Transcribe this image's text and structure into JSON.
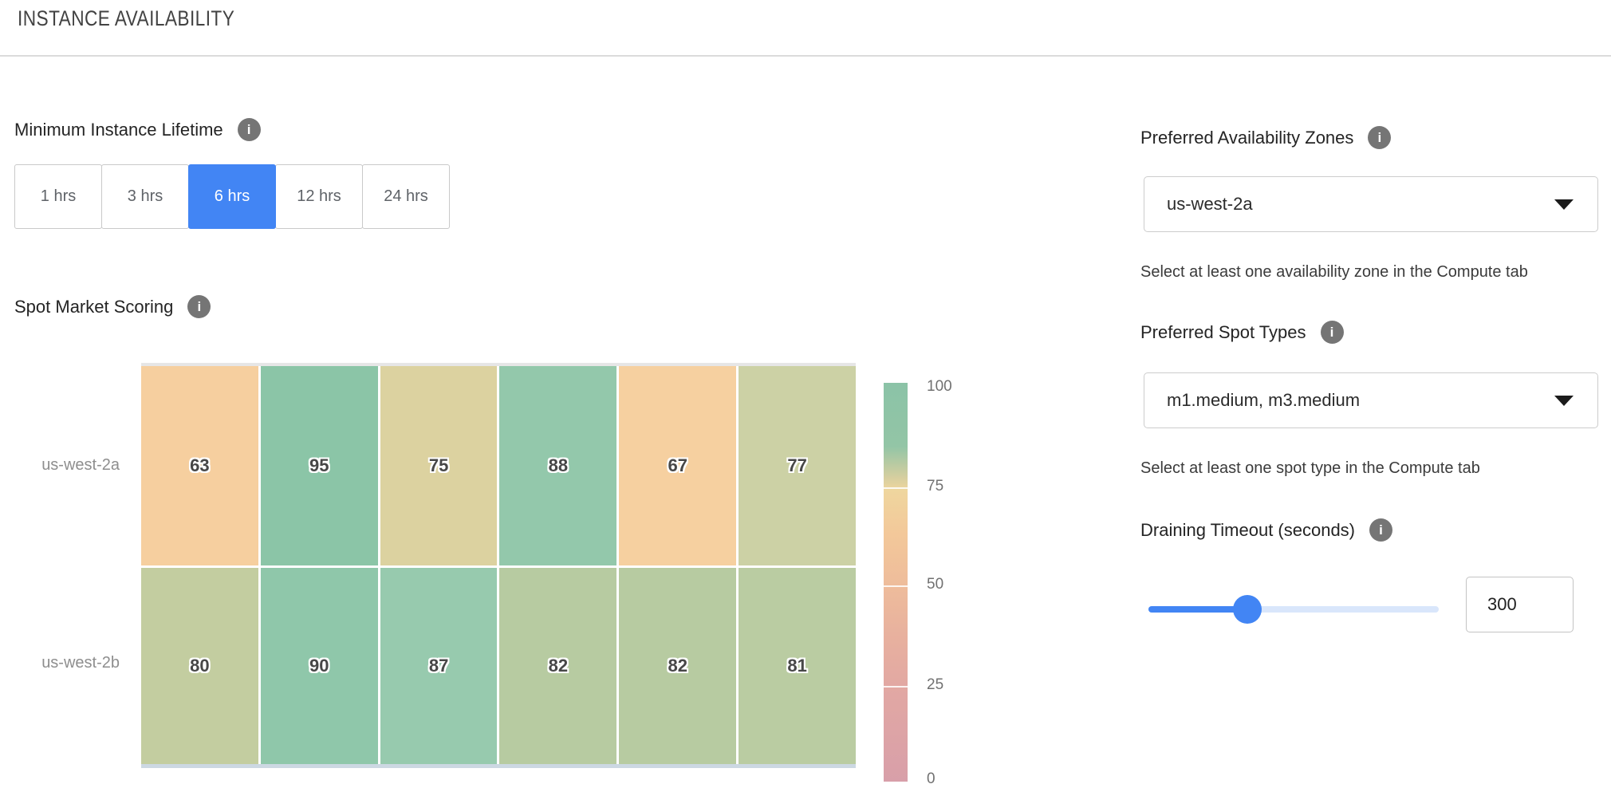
{
  "header": {
    "title": "INSTANCE AVAILABILITY"
  },
  "minimum_instance_lifetime": {
    "label": "Minimum Instance Lifetime",
    "options": [
      {
        "label": "1 hrs"
      },
      {
        "label": "3 hrs"
      },
      {
        "label": "6 hrs"
      },
      {
        "label": "12 hrs"
      },
      {
        "label": "24 hrs"
      }
    ],
    "selected_index": 2,
    "selected_value": "6 hrs"
  },
  "spot_market_scoring": {
    "label": "Spot Market Scoring"
  },
  "chart_data": {
    "type": "heatmap",
    "title": "Spot Market Scoring",
    "rows": [
      "us-west-2a",
      "us-west-2b"
    ],
    "columns_count": 6,
    "series": [
      {
        "name": "us-west-2a",
        "values": [
          63,
          95,
          75,
          88,
          67,
          77
        ],
        "colors": [
          "#f6cf9f",
          "#8bc5a7",
          "#dcd2a0",
          "#93c8ab",
          "#f6d0a0",
          "#ccd1a5"
        ]
      },
      {
        "name": "us-west-2b",
        "values": [
          80,
          90,
          87,
          82,
          82,
          81
        ],
        "colors": [
          "#c3cda0",
          "#8fc7aa",
          "#97caae",
          "#b7cba1",
          "#b7cba1",
          "#bacca2"
        ]
      }
    ],
    "colorbar": {
      "ticks": [
        "100",
        "75",
        "50",
        "25",
        "0"
      ],
      "range": [
        0,
        100
      ],
      "gradient_stops": [
        {
          "pct": 0,
          "color": "#8bc3a7"
        },
        {
          "pct": 16,
          "color": "#93c5a6"
        },
        {
          "pct": 24,
          "color": "#d8cf9f"
        },
        {
          "pct": 27,
          "color": "#efd69e"
        },
        {
          "pct": 38,
          "color": "#f3c89a"
        },
        {
          "pct": 51,
          "color": "#eebc9b"
        },
        {
          "pct": 63,
          "color": "#e8b19e"
        },
        {
          "pct": 76,
          "color": "#e2a8a3"
        },
        {
          "pct": 100,
          "color": "#d89fa9"
        }
      ]
    },
    "legend_position": "right"
  },
  "preferred_availability_zones": {
    "label": "Preferred Availability Zones",
    "value": "us-west-2a",
    "hint": "Select at least one availability zone in the Compute tab"
  },
  "preferred_spot_types": {
    "label": "Preferred Spot Types",
    "value": "m1.medium, m3.medium",
    "hint": "Select at least one spot type in the Compute tab"
  },
  "draining_timeout": {
    "label": "Draining Timeout (seconds)",
    "value": "300",
    "slider_percent": 34
  },
  "colors": {
    "accent_blue": "#4285f4",
    "slider_track_empty": "#d9e6fb",
    "info_icon_gray": "#757575"
  }
}
